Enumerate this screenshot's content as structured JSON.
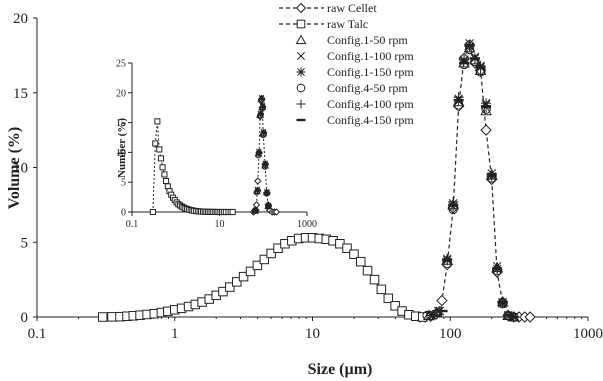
{
  "chart_data": {
    "type": "scatter",
    "title": "",
    "xlabel": "Size (µm)",
    "ylabel": "Volume (%)",
    "x_scale": "log",
    "xlim": [
      0.1,
      1000
    ],
    "ylim": [
      0,
      20
    ],
    "x_ticks": [
      "0.1",
      "1",
      "10",
      "100",
      "1000"
    ],
    "y_ticks": [
      "0",
      "5",
      "10",
      "15",
      "20"
    ],
    "grid": false,
    "legend_position": "top-center",
    "legend": [
      {
        "name": "raw Cellet",
        "marker": "diamond",
        "line": "dashed"
      },
      {
        "name": "raw Talc",
        "marker": "square",
        "line": "dashed"
      },
      {
        "name": "Config.1-50 rpm",
        "marker": "triangle",
        "line": "none"
      },
      {
        "name": "Config.1-100 rpm",
        "marker": "x",
        "line": "none"
      },
      {
        "name": "Config.1-150 rpm",
        "marker": "asterisk",
        "line": "none"
      },
      {
        "name": "Config.4-50 rpm",
        "marker": "circle",
        "line": "none"
      },
      {
        "name": "Config.4-100 rpm",
        "marker": "plus",
        "line": "none"
      },
      {
        "name": "Config.4-150 rpm",
        "marker": "dash",
        "line": "none"
      }
    ],
    "series": [
      {
        "name": "raw Cellet",
        "x": [
          60,
          66,
          72,
          79,
          87,
          95,
          105,
          115,
          126,
          138,
          151,
          166,
          182,
          200,
          219,
          240,
          263,
          289,
          316,
          347,
          380
        ],
        "y": [
          0,
          0,
          0.05,
          0.2,
          1.1,
          3.5,
          7.3,
          14.1,
          17.3,
          18.2,
          17.0,
          16.5,
          12.5,
          9.2,
          3.0,
          1.0,
          0.1,
          0,
          0,
          0,
          0
        ]
      },
      {
        "name": "raw Talc",
        "x": [
          0.3,
          0.35,
          0.4,
          0.45,
          0.5,
          0.56,
          0.63,
          0.71,
          0.8,
          0.89,
          1.0,
          1.12,
          1.26,
          1.41,
          1.58,
          1.78,
          2.0,
          2.24,
          2.51,
          2.82,
          3.16,
          3.55,
          3.98,
          4.47,
          5.01,
          5.62,
          6.31,
          7.08,
          7.94,
          8.91,
          10.0,
          11.2,
          12.6,
          14.1,
          15.8,
          17.8,
          20.0,
          22.4,
          25.1,
          28.2,
          31.6,
          35.5,
          39.8,
          44.7,
          50.1,
          56.2,
          63.1
        ],
        "y": [
          0,
          0.01,
          0.02,
          0.05,
          0.08,
          0.12,
          0.17,
          0.22,
          0.3,
          0.38,
          0.48,
          0.58,
          0.7,
          0.84,
          1.0,
          1.2,
          1.45,
          1.7,
          2.0,
          2.35,
          2.7,
          3.05,
          3.45,
          3.85,
          4.25,
          4.6,
          4.9,
          5.1,
          5.25,
          5.3,
          5.3,
          5.25,
          5.2,
          5.1,
          4.9,
          4.6,
          4.2,
          3.7,
          3.1,
          2.5,
          1.85,
          1.25,
          0.75,
          0.4,
          0.15,
          0.05,
          0
        ]
      },
      {
        "name": "Config.1-50 rpm",
        "x": [
          70,
          80,
          95,
          105,
          115,
          126,
          138,
          151,
          166,
          182,
          200,
          219,
          240,
          263,
          289
        ],
        "y": [
          0.1,
          0.3,
          3.8,
          7.5,
          14.4,
          17.0,
          18.0,
          17.2,
          16.5,
          13.8,
          9.5,
          3.3,
          1.0,
          0.1,
          0
        ]
      },
      {
        "name": "Config.1-100 rpm",
        "x": [
          72,
          82,
          95,
          105,
          115,
          126,
          138,
          151,
          166,
          182,
          200,
          219,
          240,
          263,
          289
        ],
        "y": [
          0.1,
          0.4,
          3.9,
          7.6,
          14.6,
          17.1,
          18.3,
          17.4,
          16.7,
          14.2,
          9.6,
          3.4,
          1.0,
          0.1,
          0
        ]
      },
      {
        "name": "Config.1-150 rpm",
        "x": [
          74,
          84,
          95,
          105,
          115,
          126,
          138,
          151,
          166,
          182,
          200,
          219,
          240,
          263,
          289
        ],
        "y": [
          0.1,
          0.4,
          3.8,
          7.4,
          14.5,
          17.2,
          18.1,
          17.3,
          16.8,
          14.3,
          9.4,
          3.2,
          0.9,
          0.1,
          0
        ]
      },
      {
        "name": "Config.4-50 rpm",
        "x": [
          68,
          78,
          95,
          105,
          115,
          126,
          138,
          151,
          166,
          182,
          200,
          219,
          240,
          263,
          289
        ],
        "y": [
          0.1,
          0.2,
          3.6,
          7.2,
          14.2,
          16.9,
          17.9,
          17.1,
          16.4,
          13.9,
          9.3,
          3.1,
          0.9,
          0.1,
          0
        ]
      },
      {
        "name": "Config.4-100 rpm",
        "x": [
          76,
          86,
          95,
          105,
          115,
          126,
          138,
          151,
          166,
          182,
          200,
          219,
          240,
          263,
          289
        ],
        "y": [
          0.1,
          0.4,
          3.9,
          7.7,
          14.7,
          17.2,
          18.2,
          17.3,
          16.6,
          14.0,
          9.6,
          3.3,
          1.0,
          0.1,
          0
        ]
      },
      {
        "name": "Config.4-150 rpm",
        "x": [
          78,
          88,
          95,
          105,
          115,
          126,
          138,
          151,
          166,
          182,
          200,
          219,
          240,
          263,
          289
        ],
        "y": [
          0.1,
          0.4,
          3.8,
          7.5,
          14.5,
          17.0,
          18.2,
          17.3,
          16.7,
          14.1,
          9.5,
          3.2,
          1.0,
          0.1,
          0
        ]
      }
    ],
    "inset": {
      "type": "scatter",
      "xlabel": "",
      "ylabel": "Number (%)",
      "x_scale": "log",
      "xlim": [
        0.1,
        1000
      ],
      "ylim": [
        0,
        25
      ],
      "x_ticks": [
        "0.1",
        "10",
        "1000"
      ],
      "y_ticks": [
        "0",
        "5",
        "10",
        "15",
        "20",
        "25"
      ],
      "series": [
        {
          "name": "raw Cellet",
          "x": [
            60,
            65,
            70,
            75,
            80,
            85,
            90,
            95,
            100,
            110,
            120,
            130,
            140,
            160,
            180,
            200
          ],
          "y": [
            0,
            0.3,
            1.2,
            5.2,
            10.0,
            16.0,
            18.8,
            17.5,
            13.0,
            8.0,
            3.2,
            1.2,
            0.3,
            0,
            0,
            0
          ]
        },
        {
          "name": "raw Talc",
          "x": [
            0.3,
            0.34,
            0.38,
            0.42,
            0.46,
            0.5,
            0.55,
            0.6,
            0.66,
            0.72,
            0.79,
            0.87,
            0.95,
            1.05,
            1.15,
            1.26,
            1.38,
            1.51,
            1.66,
            1.82,
            2.0,
            2.2,
            2.4,
            2.6,
            2.9,
            3.2,
            3.5,
            3.8,
            4.2,
            4.6,
            5.0,
            5.5,
            6.0,
            6.6,
            7.2,
            8.0,
            8.7,
            9.5,
            10.5,
            11.5,
            12.6,
            14,
            16,
            18,
            20
          ],
          "y": [
            0,
            11.5,
            15.2,
            10.5,
            9.0,
            7.5,
            6.3,
            5.2,
            4.3,
            3.5,
            2.9,
            2.4,
            2.0,
            1.6,
            1.3,
            1.1,
            0.9,
            0.75,
            0.6,
            0.5,
            0.4,
            0.32,
            0.26,
            0.2,
            0.16,
            0.12,
            0.1,
            0.08,
            0.06,
            0.05,
            0.04,
            0.03,
            0.02,
            0.02,
            0.01,
            0.01,
            0,
            0,
            0,
            0,
            0,
            0,
            0,
            0,
            0
          ]
        },
        {
          "name": "Config.1-50 rpm",
          "x": [
            65,
            72,
            78,
            85,
            90,
            95,
            100,
            110,
            120,
            130
          ],
          "y": [
            0.2,
            3.5,
            9.8,
            16.3,
            19.0,
            17.6,
            13.2,
            7.8,
            3.3,
            1.0
          ]
        },
        {
          "name": "Config.1-100 rpm",
          "x": [
            66,
            73,
            79,
            86,
            91,
            96,
            101,
            111,
            121,
            131
          ],
          "y": [
            0.3,
            3.8,
            10.2,
            16.6,
            19.2,
            17.9,
            13.5,
            8.2,
            3.4,
            1.1
          ]
        },
        {
          "name": "Config.1-150 rpm",
          "x": [
            67,
            74,
            80,
            87,
            92,
            97,
            102,
            112,
            122,
            132
          ],
          "y": [
            0.3,
            3.6,
            9.9,
            16.4,
            19.1,
            17.7,
            13.3,
            8.0,
            3.2,
            1.0
          ]
        },
        {
          "name": "Config.4-50 rpm",
          "x": [
            64,
            71,
            77,
            84,
            89,
            94,
            99,
            109,
            119,
            129
          ],
          "y": [
            0.2,
            3.3,
            9.5,
            16.1,
            18.7,
            17.3,
            12.9,
            7.6,
            3.1,
            0.9
          ]
        },
        {
          "name": "Config.4-100 rpm",
          "x": [
            68,
            75,
            81,
            88,
            93,
            98,
            103,
            113,
            123,
            133
          ],
          "y": [
            0.3,
            3.7,
            10.0,
            16.5,
            19.1,
            17.8,
            13.4,
            8.1,
            3.3,
            1.0
          ]
        },
        {
          "name": "Config.4-150 rpm",
          "x": [
            69,
            76,
            82,
            89,
            94,
            99,
            104,
            114,
            124,
            134
          ],
          "y": [
            0.3,
            3.6,
            9.9,
            16.4,
            19.0,
            17.6,
            13.3,
            8.0,
            3.2,
            1.0
          ]
        }
      ]
    }
  }
}
